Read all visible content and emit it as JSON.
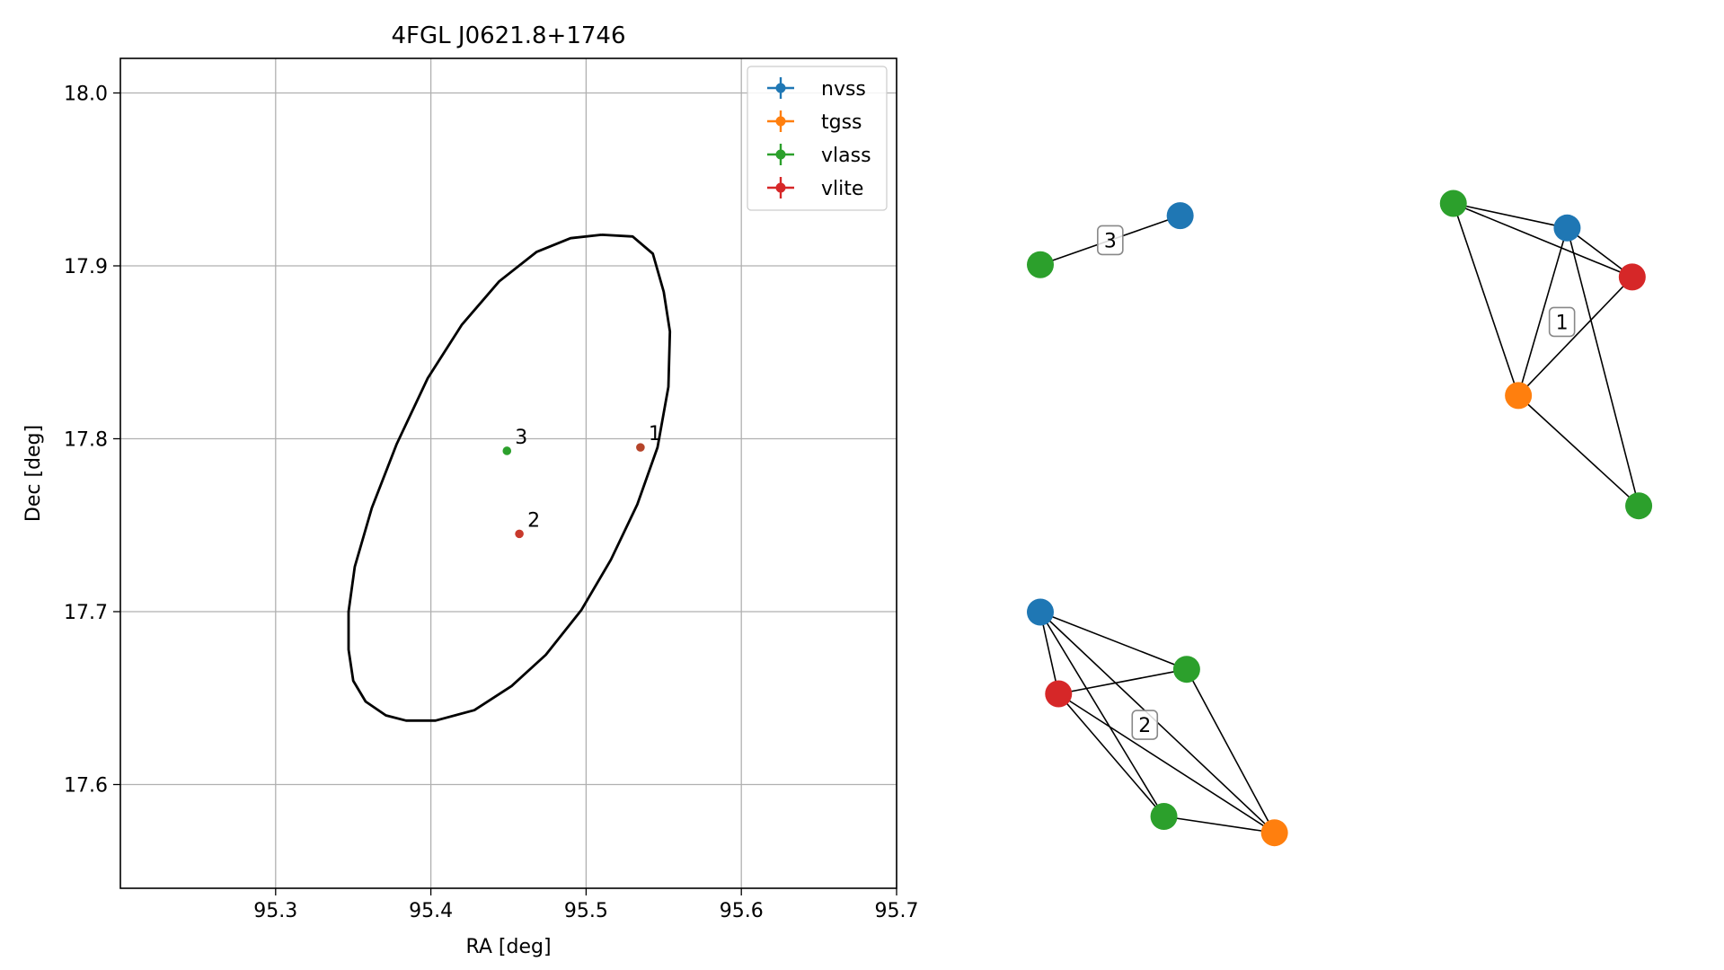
{
  "chart_data": [
    {
      "type": "scatter",
      "title": "4FGL J0621.8+1746",
      "xlabel": "RA [deg]",
      "ylabel": "Dec [deg]",
      "xlim": [
        95.2,
        95.7
      ],
      "ylim": [
        17.54,
        18.02
      ],
      "xticks": [
        95.3,
        95.4,
        95.5,
        95.6,
        95.7
      ],
      "yticks": [
        17.6,
        17.7,
        17.8,
        17.9,
        18.0
      ],
      "xtick_labels": [
        "95.3",
        "95.4",
        "95.5",
        "95.6",
        "95.7"
      ],
      "ytick_labels": [
        "17.6",
        "17.7",
        "17.8",
        "17.9",
        "18.0"
      ],
      "grid": true,
      "legend_position": "top-right",
      "legend": [
        {
          "name": "nvss",
          "color": "#1f77b4"
        },
        {
          "name": "tgss",
          "color": "#ff7f0e"
        },
        {
          "name": "vlass",
          "color": "#2ca02c"
        },
        {
          "name": "vlite",
          "color": "#d62728"
        }
      ],
      "ellipse": {
        "center": [
          95.45,
          17.78
        ],
        "points": [
          [
            95.51,
            17.918
          ],
          [
            95.53,
            17.917
          ],
          [
            95.543,
            17.907
          ],
          [
            95.55,
            17.885
          ],
          [
            95.554,
            17.862
          ],
          [
            95.553,
            17.83
          ],
          [
            95.546,
            17.795
          ],
          [
            95.533,
            17.762
          ],
          [
            95.516,
            17.73
          ],
          [
            95.497,
            17.701
          ],
          [
            95.474,
            17.675
          ],
          [
            95.452,
            17.657
          ],
          [
            95.428,
            17.643
          ],
          [
            95.403,
            17.637
          ],
          [
            95.384,
            17.637
          ],
          [
            95.371,
            17.64
          ],
          [
            95.358,
            17.648
          ],
          [
            95.35,
            17.66
          ],
          [
            95.347,
            17.678
          ],
          [
            95.347,
            17.7
          ],
          [
            95.351,
            17.726
          ],
          [
            95.362,
            17.76
          ],
          [
            95.378,
            17.797
          ],
          [
            95.398,
            17.835
          ],
          [
            95.42,
            17.866
          ],
          [
            95.444,
            17.891
          ],
          [
            95.468,
            17.908
          ],
          [
            95.49,
            17.916
          ],
          [
            95.51,
            17.918
          ]
        ]
      },
      "sources": [
        {
          "label": "1",
          "ra": 95.535,
          "dec": 17.795,
          "color": "#b5442a"
        },
        {
          "label": "2",
          "ra": 95.457,
          "dec": 17.745,
          "color": "#c8392c"
        },
        {
          "label": "3",
          "ra": 95.449,
          "dec": 17.793,
          "color": "#2ca02c"
        }
      ]
    },
    {
      "type": "network",
      "groups": [
        {
          "label": "3",
          "nodes": [
            {
              "color": "#1f77b4",
              "x": 0.215,
              "y": 0.835
            },
            {
              "color": "#2ca02c",
              "x": 0.0,
              "y": 0.775
            }
          ],
          "edges": [
            [
              0,
              1
            ]
          ]
        },
        {
          "label": "1",
          "nodes": [
            {
              "color": "#2ca02c",
              "x": 0.635,
              "y": 0.85
            },
            {
              "color": "#1f77b4",
              "x": 0.81,
              "y": 0.82
            },
            {
              "color": "#d62728",
              "x": 0.91,
              "y": 0.76
            },
            {
              "color": "#ff7f0e",
              "x": 0.735,
              "y": 0.615
            },
            {
              "color": "#2ca02c",
              "x": 0.92,
              "y": 0.48
            }
          ],
          "edges": [
            [
              0,
              1
            ],
            [
              0,
              2
            ],
            [
              0,
              3
            ],
            [
              1,
              2
            ],
            [
              1,
              3
            ],
            [
              1,
              4
            ],
            [
              2,
              3
            ],
            [
              3,
              4
            ]
          ]
        },
        {
          "label": "2",
          "nodes": [
            {
              "color": "#1f77b4",
              "x": 0.0,
              "y": 0.35
            },
            {
              "color": "#2ca02c",
              "x": 0.225,
              "y": 0.28
            },
            {
              "color": "#d62728",
              "x": 0.028,
              "y": 0.25
            },
            {
              "color": "#2ca02c",
              "x": 0.19,
              "y": 0.1
            },
            {
              "color": "#ff7f0e",
              "x": 0.36,
              "y": 0.08
            }
          ],
          "edges": [
            [
              0,
              1
            ],
            [
              0,
              2
            ],
            [
              0,
              3
            ],
            [
              0,
              4
            ],
            [
              1,
              2
            ],
            [
              1,
              4
            ],
            [
              2,
              3
            ],
            [
              2,
              4
            ],
            [
              3,
              4
            ]
          ]
        }
      ]
    }
  ]
}
